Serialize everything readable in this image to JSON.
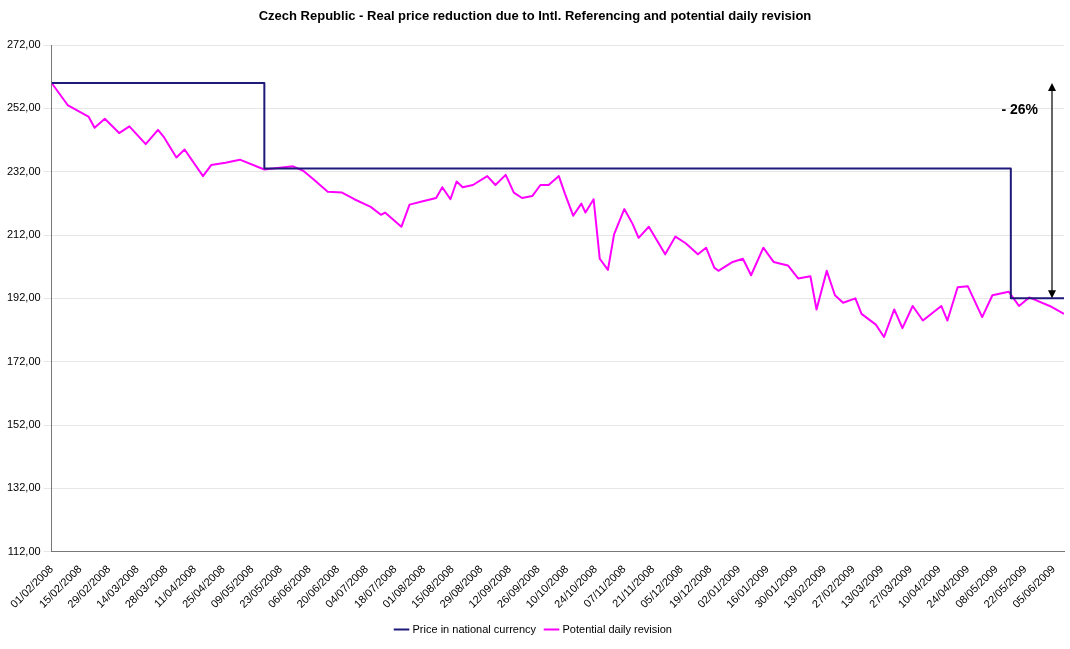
{
  "chart_data": {
    "type": "line",
    "title": "Czech Republic - Real price reduction due to Intl. Referencing and potential daily revision",
    "xlim": [
      "2008-02-01",
      "2009-06-10"
    ],
    "xticks": [
      {
        "value": "2008-02-01",
        "label": "01/02/2008"
      },
      {
        "value": "2008-02-15",
        "label": "15/02/2008"
      },
      {
        "value": "2008-02-29",
        "label": "29/02/2008"
      },
      {
        "value": "2008-03-14",
        "label": "14/03/2008"
      },
      {
        "value": "2008-03-28",
        "label": "28/03/2008"
      },
      {
        "value": "2008-04-11",
        "label": "11/04/2008"
      },
      {
        "value": "2008-04-25",
        "label": "25/04/2008"
      },
      {
        "value": "2008-05-09",
        "label": "09/05/2008"
      },
      {
        "value": "2008-05-23",
        "label": "23/05/2008"
      },
      {
        "value": "2008-06-06",
        "label": "06/06/2008"
      },
      {
        "value": "2008-06-20",
        "label": "20/06/2008"
      },
      {
        "value": "2008-07-04",
        "label": "04/07/2008"
      },
      {
        "value": "2008-07-18",
        "label": "18/07/2008"
      },
      {
        "value": "2008-08-01",
        "label": "01/08/2008"
      },
      {
        "value": "2008-08-15",
        "label": "15/08/2008"
      },
      {
        "value": "2008-08-29",
        "label": "29/08/2008"
      },
      {
        "value": "2008-09-12",
        "label": "12/09/2008"
      },
      {
        "value": "2008-09-26",
        "label": "26/09/2008"
      },
      {
        "value": "2008-10-10",
        "label": "10/10/2008"
      },
      {
        "value": "2008-10-24",
        "label": "24/10/2008"
      },
      {
        "value": "2008-11-07",
        "label": "07/11/2008"
      },
      {
        "value": "2008-11-21",
        "label": "21/11/2008"
      },
      {
        "value": "2008-12-05",
        "label": "05/12/2008"
      },
      {
        "value": "2008-12-19",
        "label": "19/12/2008"
      },
      {
        "value": "2009-01-02",
        "label": "02/01/2009"
      },
      {
        "value": "2009-01-16",
        "label": "16/01/2009"
      },
      {
        "value": "2009-01-30",
        "label": "30/01/2009"
      },
      {
        "value": "2009-02-13",
        "label": "13/02/2009"
      },
      {
        "value": "2009-02-27",
        "label": "27/02/2009"
      },
      {
        "value": "2009-03-13",
        "label": "13/03/2009"
      },
      {
        "value": "2009-03-27",
        "label": "27/03/2009"
      },
      {
        "value": "2009-04-10",
        "label": "10/04/2009"
      },
      {
        "value": "2009-04-24",
        "label": "24/04/2009"
      },
      {
        "value": "2009-05-08",
        "label": "08/05/2009"
      },
      {
        "value": "2009-05-22",
        "label": "22/05/2009"
      },
      {
        "value": "2009-06-05",
        "label": "05/06/2009"
      }
    ],
    "ylim": [
      112,
      272
    ],
    "yticks": [
      {
        "value": 112,
        "label": "112,00"
      },
      {
        "value": 132,
        "label": "132,00"
      },
      {
        "value": 152,
        "label": "152,00"
      },
      {
        "value": 172,
        "label": "172,00"
      },
      {
        "value": 192,
        "label": "192,00"
      },
      {
        "value": 212,
        "label": "212,00"
      },
      {
        "value": 232,
        "label": "232,00"
      },
      {
        "value": 252,
        "label": "252,00"
      },
      {
        "value": 272,
        "label": "272,00"
      }
    ],
    "grid": "y",
    "legend": "bottom",
    "marker": "none",
    "annotations": [
      "- 26%"
    ],
    "series": [
      {
        "name": "Price in national currency",
        "type": "step",
        "color": "#1f1a7a",
        "x": [
          "2008-02-01",
          "2008-05-15",
          "2009-05-15",
          "2009-06-10"
        ],
        "values": [
          260,
          233,
          192,
          192
        ]
      },
      {
        "name": "Potential daily revision",
        "color": "#ff00ff",
        "x": [
          "2008-02-01",
          "2008-02-09",
          "2008-02-19",
          "2008-02-22",
          "2008-02-27",
          "2008-03-05",
          "2008-03-10",
          "2008-03-18",
          "2008-03-24",
          "2008-03-27",
          "2008-04-02",
          "2008-04-06",
          "2008-04-15",
          "2008-04-19",
          "2008-04-26",
          "2008-05-03",
          "2008-05-15",
          "2008-05-29",
          "2008-06-03",
          "2008-06-08",
          "2008-06-15",
          "2008-06-22",
          "2008-06-28",
          "2008-07-06",
          "2008-07-11",
          "2008-07-13",
          "2008-07-21",
          "2008-07-25",
          "2008-07-31",
          "2008-08-07",
          "2008-08-10",
          "2008-08-14",
          "2008-08-17",
          "2008-08-20",
          "2008-08-25",
          "2008-09-01",
          "2008-09-05",
          "2008-09-10",
          "2008-09-14",
          "2008-09-18",
          "2008-09-23",
          "2008-09-27",
          "2008-10-01",
          "2008-10-06",
          "2008-10-09",
          "2008-10-13",
          "2008-10-17",
          "2008-10-19",
          "2008-10-23",
          "2008-10-26",
          "2008-10-30",
          "2008-11-02",
          "2008-11-07",
          "2008-11-11",
          "2008-11-14",
          "2008-11-19",
          "2008-11-27",
          "2008-12-02",
          "2008-12-07",
          "2008-12-13",
          "2008-12-17",
          "2008-12-21",
          "2008-12-23",
          "2008-12-30",
          "2009-01-04",
          "2009-01-08",
          "2009-01-14",
          "2009-01-19",
          "2009-01-26",
          "2009-01-31",
          "2009-02-06",
          "2009-02-09",
          "2009-02-14",
          "2009-02-18",
          "2009-02-22",
          "2009-02-28",
          "2009-03-03",
          "2009-03-10",
          "2009-03-14",
          "2009-03-19",
          "2009-03-23",
          "2009-03-28",
          "2009-04-02",
          "2009-04-11",
          "2009-04-14",
          "2009-04-19",
          "2009-04-24",
          "2009-05-01",
          "2009-05-06",
          "2009-05-14",
          "2009-05-19",
          "2009-05-24",
          "2009-06-03",
          "2009-06-10"
        ],
        "values": [
          260,
          252.9,
          249.4,
          245.9,
          248.7,
          244.2,
          246.3,
          240.7,
          245.2,
          242.8,
          236.5,
          239,
          230.6,
          234.1,
          234.8,
          235.8,
          232.7,
          233.7,
          232.3,
          229.6,
          225.7,
          225.4,
          223.3,
          220.9,
          218.4,
          219.1,
          214.6,
          221.6,
          222.6,
          223.7,
          227.1,
          223.3,
          228.9,
          227.1,
          227.8,
          230.6,
          227.8,
          231,
          225.4,
          223.7,
          224.3,
          227.8,
          227.8,
          230.6,
          225,
          218.1,
          221.9,
          219.1,
          223.3,
          204.5,
          201,
          212.2,
          220.2,
          215.6,
          211.1,
          214.6,
          205.9,
          211.5,
          209.4,
          205.9,
          208,
          201.7,
          200.7,
          203.5,
          204.5,
          199.3,
          208,
          203.5,
          202.4,
          198.3,
          199,
          188.5,
          200.7,
          193,
          190.6,
          192,
          187.1,
          183.7,
          179.8,
          188.5,
          182.6,
          189.6,
          185,
          189.6,
          185,
          195.5,
          195.8,
          186.1,
          193,
          194.1,
          189.6,
          192.3,
          189.6,
          187.1
        ]
      }
    ]
  }
}
